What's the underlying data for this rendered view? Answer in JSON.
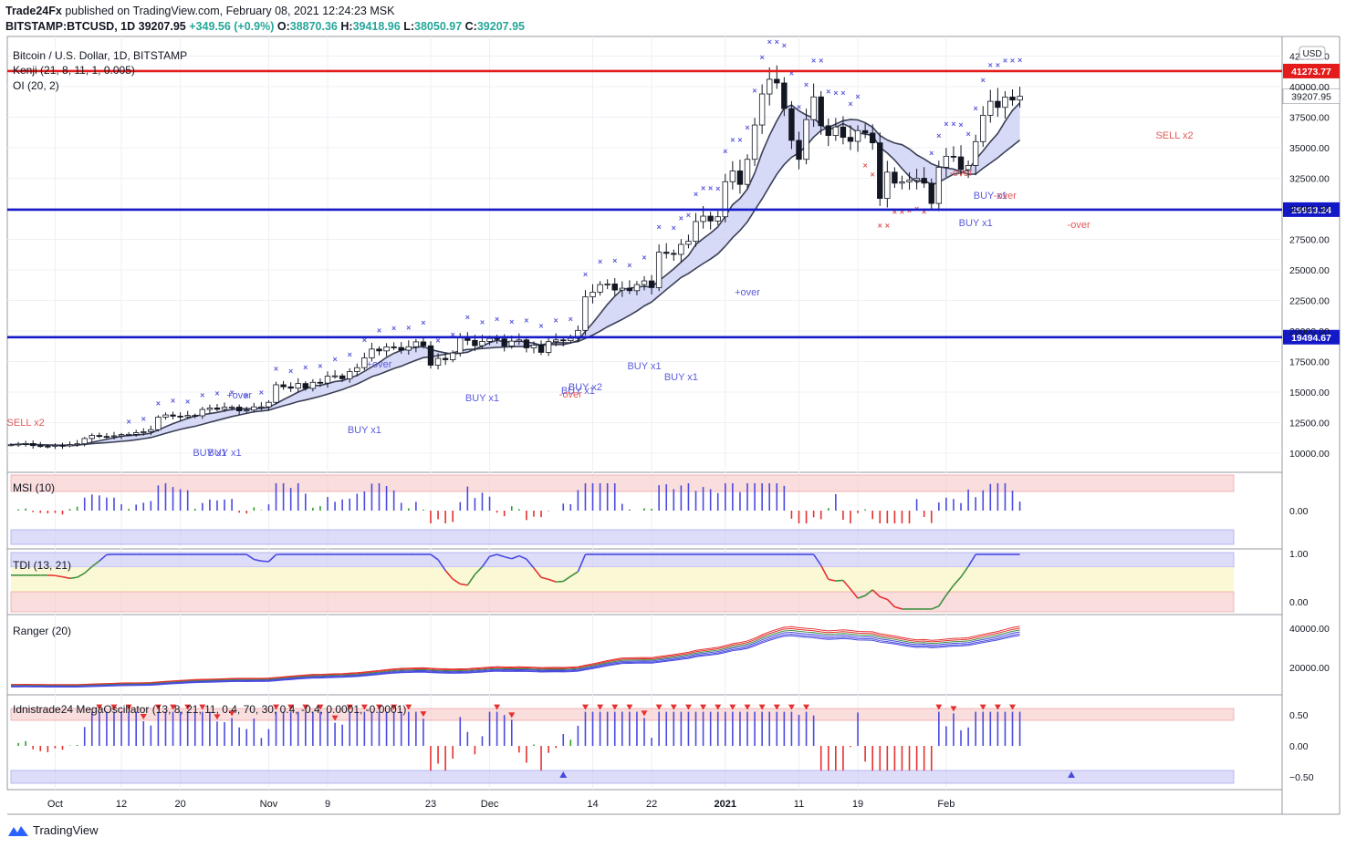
{
  "header": {
    "author": "Trade24Fx",
    "published_text": "published on TradingView.com, February 08, 2021 12:24:23 MSK",
    "symbol": "BITSTAMP:BTCUSD, 1D",
    "last": "39207.95",
    "change": "+349.56 (+0.9%)",
    "o_label": "O:",
    "o": "38870.36",
    "h_label": "H:",
    "h": "39418.96",
    "l_label": "L:",
    "l": "38050.97",
    "c_label": "C:",
    "c": "39207.95"
  },
  "chart_data": [
    {
      "type": "candlestick",
      "title": "Bitcoin / U.S. Dollar, 1D, BITSTAMP",
      "indicators": [
        "Kenji (21, 8, 11, 1, 0.005)",
        "OI (20, 2)"
      ],
      "currency": "USD",
      "y_ticks": [
        10000,
        12500,
        15000,
        17500,
        20000,
        22500,
        25000,
        27500,
        30000,
        32500,
        35000,
        37500,
        40000,
        42500
      ],
      "y_tick_labels": [
        "10000.00",
        "12500.00",
        "15000.00",
        "17500.00",
        "20000.00",
        "22500.00",
        "25000.00",
        "27500.00",
        "30000.00",
        "32500.00",
        "35000.00",
        "37500.00",
        "40000.00",
        "42500.00"
      ],
      "horizontal_levels": [
        {
          "value": 41273.77,
          "label": "41273.77",
          "color": "#e31b1b"
        },
        {
          "value": 29933.24,
          "label": "29933.24",
          "color": "#1419c8"
        },
        {
          "value": 19494.67,
          "label": "19494.67",
          "color": "#1419c8"
        }
      ],
      "last_price_label": "39207.95",
      "closes": [
        10690,
        10750,
        10790,
        10620,
        10580,
        10560,
        10640,
        10610,
        10700,
        10770,
        11200,
        11450,
        11370,
        11350,
        11420,
        11520,
        11540,
        11680,
        11760,
        11920,
        12950,
        13130,
        13030,
        12980,
        13090,
        13060,
        13580,
        13700,
        13590,
        13760,
        13770,
        13460,
        13530,
        13790,
        13790,
        14160,
        15600,
        15430,
        15320,
        15700,
        15300,
        15800,
        15740,
        16300,
        16330,
        16090,
        16680,
        17000,
        17800,
        18520,
        18370,
        18700,
        18650,
        18430,
        18710,
        19110,
        18790,
        17200,
        17760,
        17650,
        18200,
        19520,
        19230,
        18800,
        19150,
        19390,
        19350,
        18770,
        19170,
        19270,
        18620,
        18850,
        18250,
        19130,
        19270,
        19210,
        19400,
        20050,
        22800,
        23180,
        23800,
        23850,
        23350,
        23500,
        23300,
        23800,
        24100,
        23550,
        26450,
        26350,
        26270,
        27090,
        27340,
        28960,
        29400,
        29000,
        29350,
        32220,
        33100,
        32000,
        34050,
        36860,
        39400,
        40600,
        40300,
        38200,
        35600,
        34050,
        37300,
        39160,
        36800,
        36000,
        36700,
        35850,
        35520,
        36400,
        36200,
        35400,
        30850,
        33000,
        32100,
        32200,
        32350,
        32500,
        32100,
        30440,
        33400,
        34300,
        34250,
        33200,
        33550,
        35500,
        37650,
        38800,
        38300,
        39150,
        38900,
        39207
      ]
    },
    {
      "type": "bar",
      "title": "MSI (10)",
      "y_ticks": [
        0.0
      ],
      "y_tick_labels": [
        "0.00"
      ]
    },
    {
      "type": "line",
      "title": "TDI (13, 21)",
      "y_ticks": [
        1.0,
        0.0
      ],
      "y_tick_labels": [
        "1.00",
        "0.00"
      ]
    },
    {
      "type": "line",
      "title": "Ranger (20)",
      "y_ticks": [
        40000,
        20000
      ],
      "y_tick_labels": [
        "40000.00",
        "20000.00"
      ]
    },
    {
      "type": "bar",
      "title": "Idnistrade24 MegaOscillator (13, 8, 21, 11, 0.4, 70, 30, 0.4, -0.4, 0.0001, -0.0001)",
      "y_ticks": [
        0.5,
        0.0,
        -0.5
      ],
      "y_tick_labels": [
        "0.50",
        "0.00",
        "−0.50"
      ]
    }
  ],
  "x_axis": {
    "labels": [
      "Oct",
      "12",
      "20",
      "Nov",
      "9",
      "23",
      "Dec",
      "14",
      "22",
      "2021",
      "11",
      "19",
      "Feb"
    ]
  },
  "signals": [
    {
      "text": "SELL x2"
    },
    {
      "text": "BUY x1"
    },
    {
      "text": "BUY x1"
    },
    {
      "text": "+over"
    },
    {
      "text": "BUY x1"
    },
    {
      "text": "+over"
    },
    {
      "text": "BUY x1"
    },
    {
      "text": "BUY x2"
    },
    {
      "text": "BUY x1"
    },
    {
      "text": "-over"
    },
    {
      "text": "BUY x1"
    },
    {
      "text": "BUY x1"
    },
    {
      "text": "+over"
    },
    {
      "text": "-over"
    },
    {
      "text": "BUY x1"
    },
    {
      "text": "BUY x1"
    },
    {
      "text": "-over"
    },
    {
      "text": "-over"
    },
    {
      "text": "SELL x2"
    }
  ],
  "footer": {
    "brand": "TradingView"
  },
  "colors": {
    "resistance": "#e31b1b",
    "support": "#1419c8",
    "cross": "#5b5bdc",
    "buy": "#5b5bdc",
    "sell": "#e05a5a",
    "histogram_blue": "#4a4ae0",
    "histogram_red": "#e63030",
    "histogram_green": "#2e9e2e"
  }
}
